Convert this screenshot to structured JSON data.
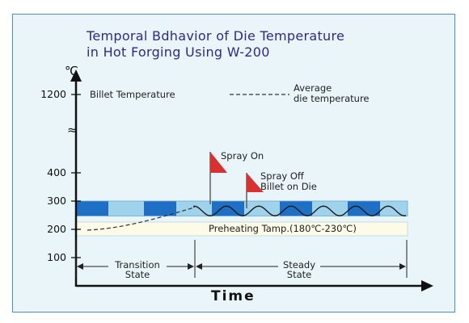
{
  "chart_data": {
    "type": "line",
    "title_lines": [
      "Temporal Bdhavior of Die Temperature",
      "in Hot Forging Using W-200"
    ],
    "xlabel": "Time",
    "y_unit": "℃",
    "y_break_symbol": "≈",
    "y_ticks": [
      100,
      200,
      300,
      400,
      1200
    ],
    "legend": {
      "billet": "Billet Temperature",
      "average_line1": "Average",
      "average_line2": "die temperature"
    },
    "annotations": {
      "spray_on": "Spray On",
      "spray_off_line1": "Spray Off",
      "spray_off_line2": "Billet on Die"
    },
    "preheating_label": "Preheating Tamp.(180℃-230℃)",
    "preheating_range": [
      180,
      230
    ],
    "band_range": [
      250,
      300
    ],
    "states": {
      "transition_line1": "Transition",
      "transition_line2": "State",
      "steady_line1": "Steady",
      "steady_line2": "State"
    },
    "colors": {
      "title": "#2b2b8a",
      "band_dark": "#1f6fc4",
      "band_light": "#9fd3ec",
      "preheat_band": "#fbfbe8",
      "flag": "#d93030",
      "frame": "#4a90c8",
      "background": "#e9f5f9"
    }
  }
}
